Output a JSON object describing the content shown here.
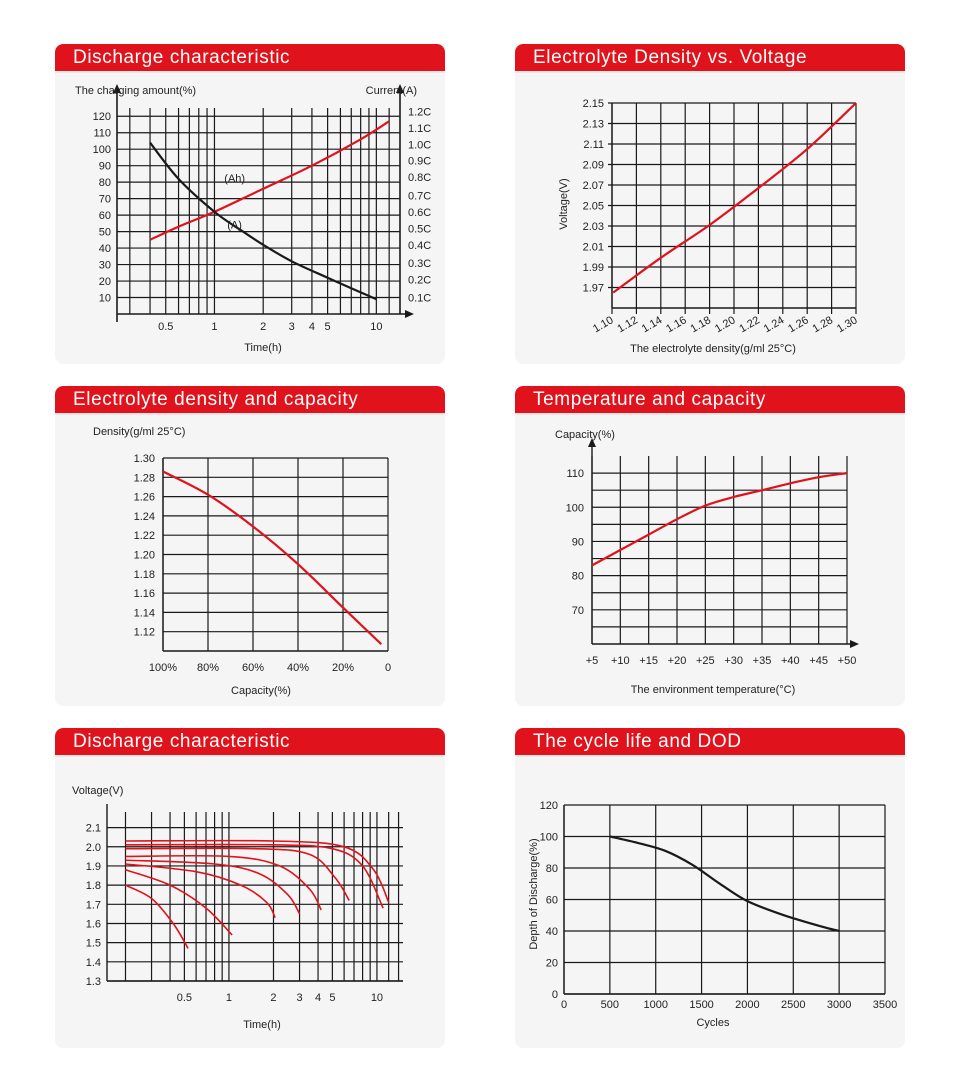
{
  "colors": {
    "accent": "#e0121b",
    "curve_red": "#e0121b",
    "curve_black": "#1a1a1a",
    "grid": "#1a1a1a"
  },
  "panels": {
    "p1": {
      "title": "Discharge characteristic"
    },
    "p2": {
      "title": "Electrolyte Density vs. Voltage"
    },
    "p3": {
      "title": "Electrolyte density and capacity"
    },
    "p4": {
      "title": "Temperature and capacity"
    },
    "p5": {
      "title": "Discharge characteristic"
    },
    "p6": {
      "title": "The cycle life and DOD"
    }
  },
  "chart_data": [
    {
      "type": "line",
      "title": "Discharge characteristic",
      "xlabel": "Time(h)",
      "ylabel": "The charging amount(%)",
      "ylabel_right": "Current(A)",
      "xscale": "log",
      "xlim": [
        0.25,
        14
      ],
      "ylim": [
        0,
        125
      ],
      "x_tick_labels": [
        "0.5",
        "1",
        "2",
        "3",
        "4",
        "5",
        "10"
      ],
      "x_tick_values": [
        0.5,
        1,
        2,
        3,
        4,
        5,
        10
      ],
      "y_tick_labels": [
        "10",
        "20",
        "30",
        "40",
        "50",
        "60",
        "70",
        "80",
        "90",
        "100",
        "110",
        "120"
      ],
      "y_tick_values": [
        10,
        20,
        30,
        40,
        50,
        60,
        70,
        80,
        90,
        100,
        110,
        120
      ],
      "right_tick_labels": [
        "0.1C",
        "0.2C",
        "0.3C",
        "0.4C",
        "0.5C",
        "0.6C",
        "0.7C",
        "0.8C",
        "0.9C",
        "1.0C",
        "1.1C",
        "1.2C"
      ],
      "right_tick_values": [
        10,
        21,
        31,
        42,
        52,
        62,
        72,
        83,
        93,
        103,
        113,
        123
      ],
      "annotations": [
        "(Ah)",
        "(A)"
      ],
      "series": [
        {
          "name": "(Ah)",
          "color": "red",
          "x": [
            0.4,
            0.6,
            1,
            2,
            4,
            8,
            12
          ],
          "y": [
            45,
            53,
            62,
            76,
            90,
            106,
            117
          ]
        },
        {
          "name": "(A)",
          "color": "black",
          "x": [
            0.4,
            0.6,
            1,
            1.5,
            2,
            3,
            5,
            10
          ],
          "y": [
            104,
            82,
            62,
            50,
            42,
            32,
            22,
            9
          ]
        }
      ],
      "grid": true
    },
    {
      "type": "line",
      "title": "Electrolyte Density vs. Voltage",
      "xlabel": "The electrolyte density(g/ml 25°C)",
      "ylabel": "Voltage(V)",
      "xlim": [
        1.1,
        1.3
      ],
      "ylim": [
        1.95,
        2.15
      ],
      "x_ticks": [
        "1.10",
        "1.12",
        "1.14",
        "1.16",
        "1.18",
        "1.20",
        "1.22",
        "1.24",
        "1.26",
        "1.28",
        "1.30"
      ],
      "y_ticks": [
        "1.97",
        "1.99",
        "2.01",
        "2.03",
        "2.05",
        "2.07",
        "2.09",
        "2.11",
        "2.13",
        "2.15"
      ],
      "series": [
        {
          "color": "red",
          "x": [
            1.101,
            1.14,
            1.18,
            1.22,
            1.26,
            1.3
          ],
          "y": [
            1.965,
            1.999,
            2.031,
            2.067,
            2.105,
            2.15
          ]
        }
      ],
      "grid": true
    },
    {
      "type": "line",
      "title": "Electrolyte density and capacity",
      "xlabel": "Capacity(%)",
      "ylabel": "Density(g/ml 25°C)",
      "x_reversed": true,
      "xlim": [
        100,
        0
      ],
      "ylim": [
        1.1,
        1.3
      ],
      "x_ticks": [
        "100%",
        "80%",
        "60%",
        "40%",
        "20%",
        "0"
      ],
      "x_tick_values": [
        100,
        80,
        60,
        40,
        20,
        0
      ],
      "y_ticks": [
        "1.12",
        "1.14",
        "1.16",
        "1.18",
        "1.20",
        "1.22",
        "1.24",
        "1.26",
        "1.28",
        "1.30"
      ],
      "series": [
        {
          "color": "red",
          "x": [
            100,
            80,
            60,
            40,
            20,
            3
          ],
          "y": [
            1.286,
            1.262,
            1.229,
            1.19,
            1.145,
            1.107
          ]
        }
      ],
      "grid": true
    },
    {
      "type": "line",
      "title": "Temperature and capacity",
      "xlabel": "The environment temperature(°C)",
      "ylabel": "Capacity(%)",
      "xlim": [
        5,
        50
      ],
      "ylim": [
        60,
        115
      ],
      "x_ticks": [
        "+5",
        "+10",
        "+15",
        "+20",
        "+25",
        "+30",
        "+35",
        "+40",
        "+45",
        "+50"
      ],
      "x_tick_values": [
        5,
        10,
        15,
        20,
        25,
        30,
        35,
        40,
        45,
        50
      ],
      "y_ticks": [
        "70",
        "80",
        "90",
        "100",
        "110"
      ],
      "y_tick_values": [
        70,
        80,
        90,
        100,
        110
      ],
      "series": [
        {
          "color": "red",
          "x": [
            5,
            10,
            15,
            20,
            25,
            30,
            35,
            40,
            45,
            50
          ],
          "y": [
            83,
            87.5,
            92,
            96.5,
            100.5,
            103,
            105,
            107,
            108.8,
            110
          ]
        }
      ],
      "grid": true
    },
    {
      "type": "line",
      "title": "Discharge characteristic",
      "xlabel": "Time(h)",
      "ylabel": "Voltage(V)",
      "xscale": "log",
      "xlim": [
        0.15,
        15
      ],
      "ylim": [
        1.3,
        2.15
      ],
      "x_ticks": [
        "0.5",
        "1",
        "2",
        "3",
        "4",
        "5",
        "10"
      ],
      "x_tick_values": [
        0.5,
        1,
        2,
        3,
        4,
        5,
        10
      ],
      "y_ticks": [
        "1.3",
        "1.4",
        "1.5",
        "1.6",
        "1.7",
        "1.8",
        "1.9",
        "2.0",
        "2.1"
      ],
      "y_tick_values": [
        1.3,
        1.4,
        1.5,
        1.6,
        1.7,
        1.8,
        1.9,
        2.0,
        2.1
      ],
      "series": [
        {
          "color": "red",
          "x": [
            0.2,
            0.3,
            0.42,
            0.53
          ],
          "y": [
            1.8,
            1.73,
            1.6,
            1.47
          ]
        },
        {
          "color": "red",
          "x": [
            0.2,
            0.4,
            0.7,
            1.05
          ],
          "y": [
            1.88,
            1.8,
            1.68,
            1.54
          ]
        },
        {
          "color": "red",
          "x": [
            0.2,
            0.6,
            1.2,
            1.8,
            2.05
          ],
          "y": [
            1.91,
            1.87,
            1.8,
            1.71,
            1.63
          ]
        },
        {
          "color": "red",
          "x": [
            0.2,
            0.8,
            1.6,
            2.5,
            3.0
          ],
          "y": [
            1.93,
            1.91,
            1.86,
            1.75,
            1.65
          ]
        },
        {
          "color": "red",
          "x": [
            0.2,
            1.0,
            2.2,
            3.5,
            4.2
          ],
          "y": [
            1.95,
            1.95,
            1.9,
            1.78,
            1.67
          ]
        },
        {
          "color": "red",
          "x": [
            0.2,
            1.5,
            3.5,
            5.2,
            6.5
          ],
          "y": [
            1.99,
            1.99,
            1.96,
            1.84,
            1.72
          ]
        },
        {
          "color": "red",
          "x": [
            0.2,
            2.0,
            5.0,
            8.0,
            11.0
          ],
          "y": [
            2.01,
            2.01,
            1.99,
            1.9,
            1.68
          ]
        },
        {
          "color": "red",
          "x": [
            0.2,
            2.0,
            6.0,
            9.5,
            12.0
          ],
          "y": [
            2.03,
            2.03,
            2.0,
            1.88,
            1.71
          ]
        }
      ],
      "grid": true
    },
    {
      "type": "line",
      "title": "The cycle life and DOD",
      "xlabel": "Cycles",
      "ylabel": "Depth of Discharge(%)",
      "xlim": [
        0,
        3500
      ],
      "ylim": [
        0,
        120
      ],
      "x_ticks": [
        "0",
        "500",
        "1000",
        "1500",
        "2000",
        "2500",
        "3000",
        "3500"
      ],
      "x_tick_values": [
        0,
        500,
        1000,
        1500,
        2000,
        2500,
        3000,
        3500
      ],
      "y_ticks": [
        "0",
        "20",
        "40",
        "60",
        "80",
        "100",
        "120"
      ],
      "y_tick_values": [
        0,
        20,
        40,
        60,
        80,
        100,
        120
      ],
      "series": [
        {
          "color": "black",
          "x": [
            500,
            800,
            1100,
            1400,
            1700,
            2000,
            2400,
            2800,
            3000
          ],
          "y": [
            100,
            96,
            91,
            82,
            70,
            59,
            50,
            43,
            40
          ]
        }
      ],
      "grid": true
    }
  ]
}
